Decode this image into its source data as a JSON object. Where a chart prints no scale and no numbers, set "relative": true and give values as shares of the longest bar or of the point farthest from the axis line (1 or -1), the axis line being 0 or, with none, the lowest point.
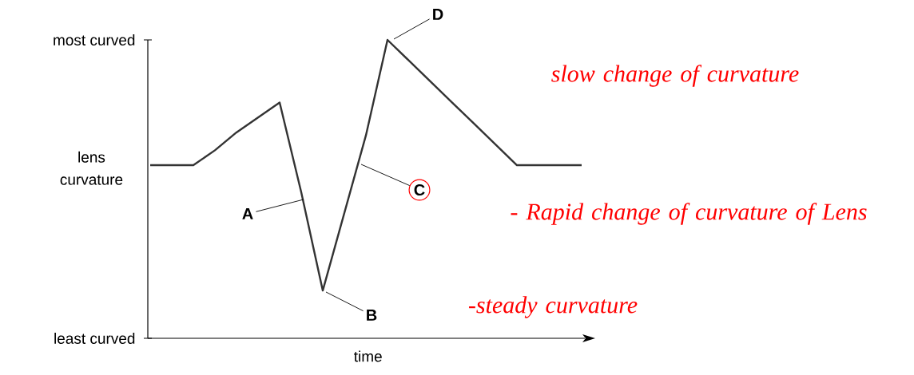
{
  "chart_data": {
    "type": "line",
    "relative": true,
    "xlabel": "time",
    "ylabel": "lens curvature",
    "categories": [
      null,
      null,
      null,
      null,
      null,
      null,
      null,
      null,
      null,
      null,
      null,
      null,
      null,
      null,
      null,
      null,
      null,
      null,
      null,
      null,
      null
    ],
    "series": [
      {
        "color": "#333333",
        "values": [
          0.58,
          0.58,
          0.58,
          0.63,
          0.69,
          0.74,
          0.79,
          0.49,
          0.16,
          0.42,
          0.68,
          1.0,
          0.93,
          0.86,
          0.79,
          0.72,
          0.65,
          0.58,
          0.58,
          0.58,
          0.58
        ]
      }
    ],
    "grid": false,
    "marker": "none",
    "line_style": "solid",
    "annotations": [
      "most curved",
      "least curved",
      "A",
      "B",
      "C",
      "D",
      "slow change of curvature",
      "- Rapid change of curvature of Lens",
      "-steady curvature"
    ]
  }
}
